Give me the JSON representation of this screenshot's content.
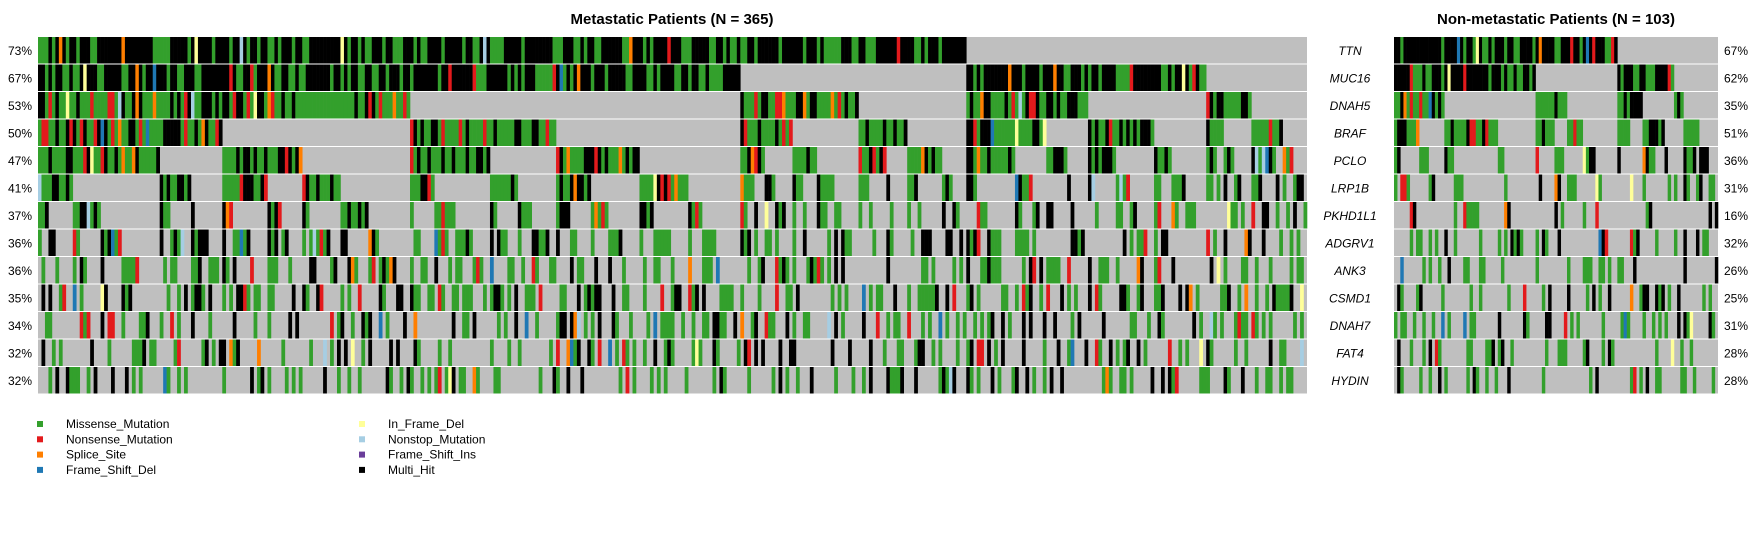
{
  "chart_data": {
    "type": "heatmap",
    "subtype": "oncoplot",
    "genes": [
      "TTN",
      "MUC16",
      "DNAH5",
      "BRAF",
      "PCLO",
      "LRP1B",
      "PKHD1L1",
      "ADGRV1",
      "ANK3",
      "CSMD1",
      "DNAH7",
      "FAT4",
      "HYDIN"
    ],
    "panels": [
      {
        "title": "Metastatic Patients (N = 365)",
        "n_samples": 365,
        "gene_labels_side": "right",
        "percent_labels_side": "left",
        "percentages": [
          "73%",
          "67%",
          "53%",
          "50%",
          "47%",
          "41%",
          "37%",
          "36%",
          "36%",
          "35%",
          "34%",
          "32%",
          "32%"
        ],
        "mutated_fraction": [
          0.73,
          0.67,
          0.53,
          0.5,
          0.47,
          0.41,
          0.37,
          0.36,
          0.36,
          0.35,
          0.34,
          0.32,
          0.32
        ]
      },
      {
        "title": "Non-metastatic Patients (N = 103)",
        "n_samples": 103,
        "percent_labels_side": "right",
        "percentages": [
          "67%",
          "62%",
          "35%",
          "51%",
          "36%",
          "31%",
          "16%",
          "32%",
          "26%",
          "25%",
          "31%",
          "28%",
          "28%"
        ],
        "mutated_fraction": [
          0.67,
          0.62,
          0.35,
          0.51,
          0.36,
          0.31,
          0.16,
          0.32,
          0.26,
          0.25,
          0.31,
          0.28,
          0.28
        ]
      }
    ],
    "legend": [
      {
        "label": "Missense_Mutation",
        "color": "#33a02c"
      },
      {
        "label": "Nonsense_Mutation",
        "color": "#e31a1c"
      },
      {
        "label": "Splice_Site",
        "color": "#ff7f00"
      },
      {
        "label": "Frame_Shift_Del",
        "color": "#1f78b4"
      },
      {
        "label": "In_Frame_Del",
        "color": "#ffff99"
      },
      {
        "label": "Nonstop_Mutation",
        "color": "#a6cee3"
      },
      {
        "label": "Frame_Shift_Ins",
        "color": "#6a3d9a"
      },
      {
        "label": "Multi_Hit",
        "color": "#000000"
      }
    ],
    "background_color": "#bfbfbf",
    "legend_placement": "bottom-left"
  }
}
